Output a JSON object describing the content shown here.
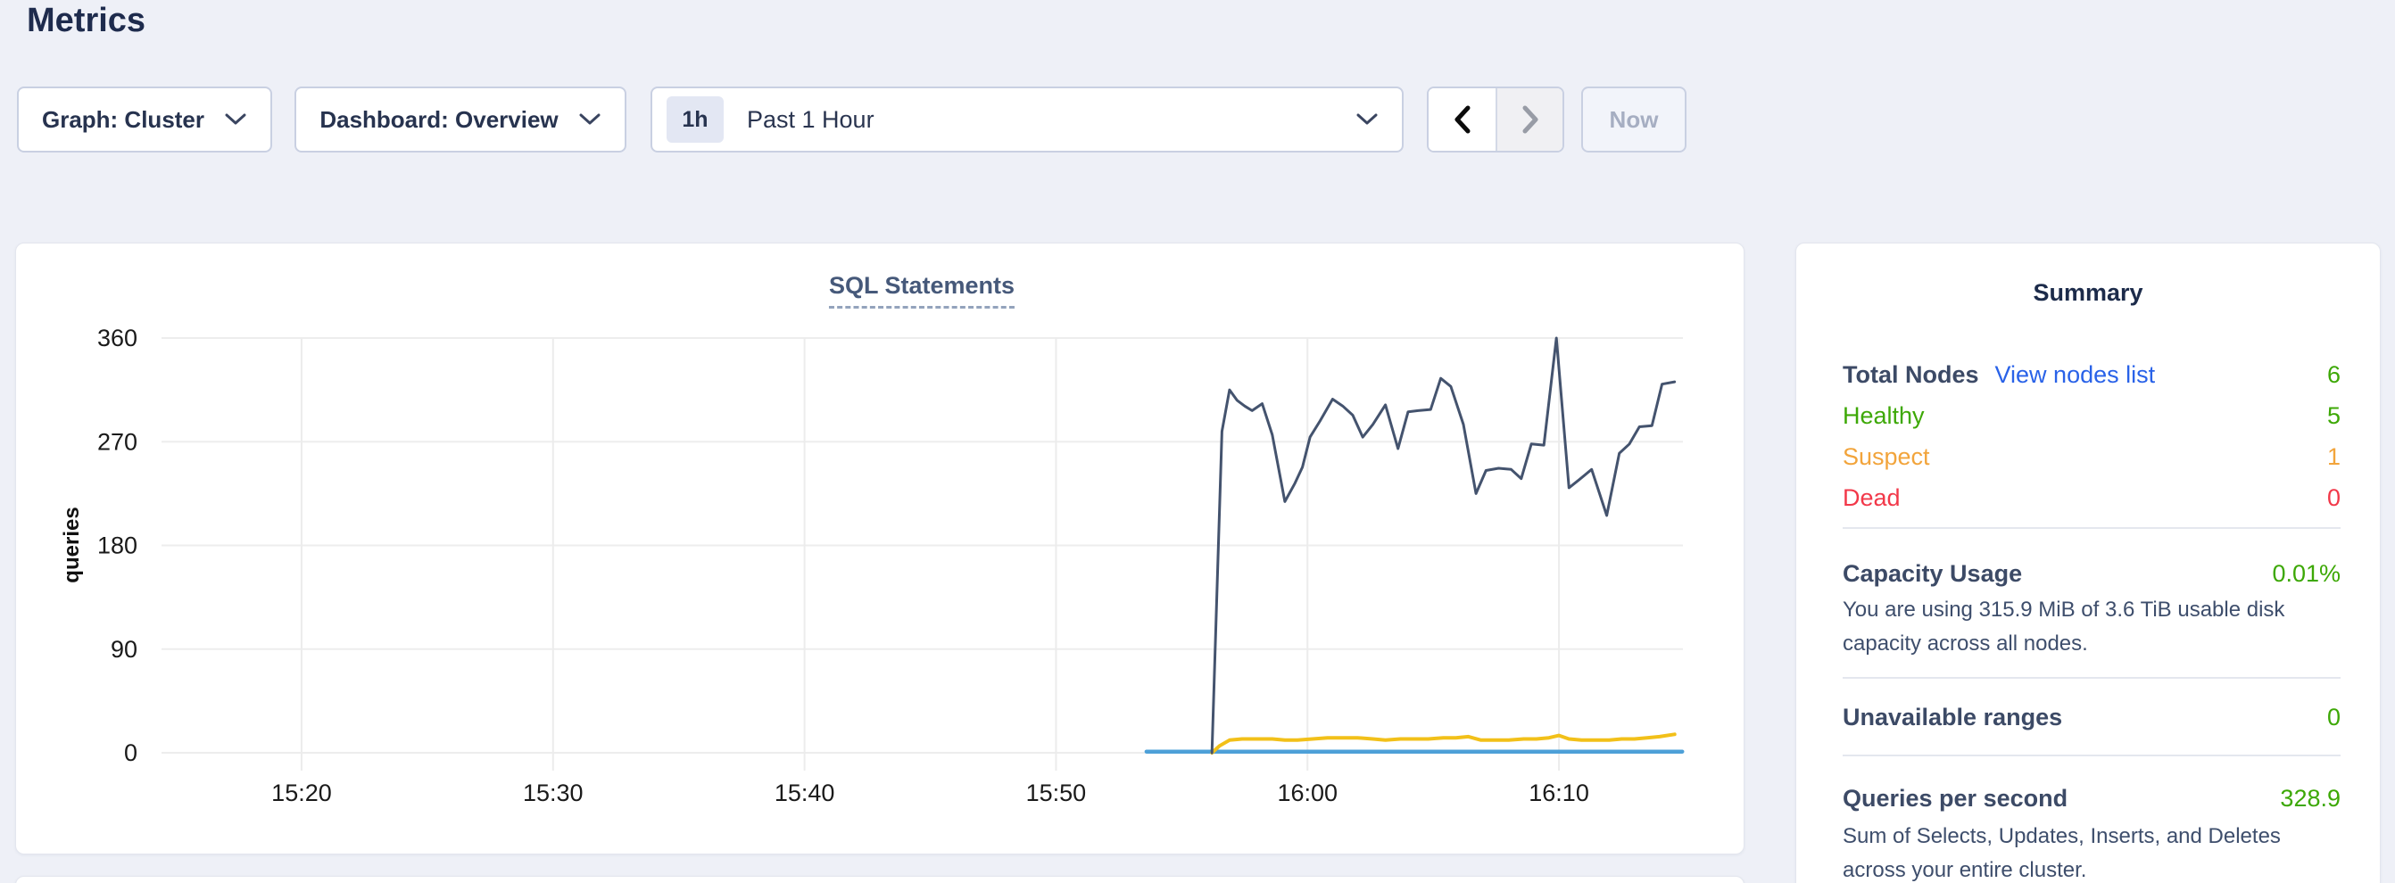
{
  "page": {
    "title": "Metrics"
  },
  "toolbar": {
    "graph_dropdown": "Graph: Cluster",
    "dashboard_dropdown": "Dashboard: Overview",
    "time_window": {
      "badge": "1h",
      "label": "Past 1 Hour"
    },
    "now_button": "Now"
  },
  "colors": {
    "link-blue": "#2962e8",
    "healthy-green": "#3da806",
    "suspect-orange": "#f2a43b",
    "dead-red": "#f23849",
    "series-dark": "#44536e",
    "series-yellow": "#f2c019",
    "series-blue": "#4da0d8"
  },
  "chart_data": {
    "type": "line",
    "title": "SQL Statements",
    "ylabel": "queries",
    "ylim": [
      0,
      360
    ],
    "y_ticks": [
      0,
      90,
      180,
      270,
      360
    ],
    "x_axis_note": "minutes after 15:00",
    "xlim": [
      14.43,
      74.93
    ],
    "x_ticks": [
      {
        "t": 20,
        "label": "15:20"
      },
      {
        "t": 30,
        "label": "15:30"
      },
      {
        "t": 40,
        "label": "15:40"
      },
      {
        "t": 50,
        "label": "15:50"
      },
      {
        "t": 60,
        "label": "16:00"
      },
      {
        "t": 70,
        "label": "16:10"
      }
    ],
    "grid": true,
    "legend": "none",
    "series": [
      {
        "name": "line-blue",
        "color_key": "series-blue",
        "width": 4.5,
        "points": [
          [
            53.6,
            1
          ],
          [
            74.9,
            1
          ]
        ]
      },
      {
        "name": "line-yellow",
        "color_key": "series-yellow",
        "width": 4,
        "points": [
          [
            56.2,
            0
          ],
          [
            56.5,
            6
          ],
          [
            56.9,
            11
          ],
          [
            57.4,
            12
          ],
          [
            58.0,
            12
          ],
          [
            58.6,
            12
          ],
          [
            59.1,
            11
          ],
          [
            59.6,
            11
          ],
          [
            60.2,
            12
          ],
          [
            60.8,
            13
          ],
          [
            61.4,
            13
          ],
          [
            62.0,
            13
          ],
          [
            62.6,
            12
          ],
          [
            63.1,
            11
          ],
          [
            63.7,
            12
          ],
          [
            64.2,
            12
          ],
          [
            64.8,
            12
          ],
          [
            65.4,
            13
          ],
          [
            65.9,
            13
          ],
          [
            66.4,
            14
          ],
          [
            66.9,
            11
          ],
          [
            67.4,
            11
          ],
          [
            68.0,
            11
          ],
          [
            68.6,
            12
          ],
          [
            69.1,
            12
          ],
          [
            69.6,
            13
          ],
          [
            70.0,
            15
          ],
          [
            70.4,
            12
          ],
          [
            70.9,
            11
          ],
          [
            71.4,
            11
          ],
          [
            72.0,
            11
          ],
          [
            72.5,
            12
          ],
          [
            73.0,
            12
          ],
          [
            73.5,
            13
          ],
          [
            74.0,
            14
          ],
          [
            74.6,
            16
          ]
        ]
      },
      {
        "name": "line-dark",
        "color_key": "series-dark",
        "width": 3,
        "points": [
          [
            56.2,
            0
          ],
          [
            56.6,
            279
          ],
          [
            56.9,
            315
          ],
          [
            57.2,
            306
          ],
          [
            57.5,
            301
          ],
          [
            57.8,
            297
          ],
          [
            58.2,
            303
          ],
          [
            58.6,
            276
          ],
          [
            59.1,
            218
          ],
          [
            59.5,
            234
          ],
          [
            59.8,
            248
          ],
          [
            60.1,
            274
          ],
          [
            60.5,
            288
          ],
          [
            61.0,
            307
          ],
          [
            61.4,
            301
          ],
          [
            61.8,
            293
          ],
          [
            62.2,
            274
          ],
          [
            62.6,
            285
          ],
          [
            63.1,
            302
          ],
          [
            63.6,
            264
          ],
          [
            64.0,
            296
          ],
          [
            64.4,
            297
          ],
          [
            64.9,
            298
          ],
          [
            65.3,
            325
          ],
          [
            65.7,
            318
          ],
          [
            66.2,
            285
          ],
          [
            66.7,
            225
          ],
          [
            67.1,
            245
          ],
          [
            67.6,
            247
          ],
          [
            68.1,
            246
          ],
          [
            68.5,
            238
          ],
          [
            68.9,
            268
          ],
          [
            69.4,
            267
          ],
          [
            69.9,
            360
          ],
          [
            70.4,
            230
          ],
          [
            70.8,
            237
          ],
          [
            71.3,
            246
          ],
          [
            71.9,
            206
          ],
          [
            72.4,
            260
          ],
          [
            72.8,
            268
          ],
          [
            73.2,
            283
          ],
          [
            73.7,
            284
          ],
          [
            74.1,
            320
          ],
          [
            74.6,
            322
          ]
        ]
      }
    ]
  },
  "summary": {
    "title": "Summary",
    "nodes": {
      "label": "Total Nodes",
      "link": "View nodes list",
      "value": "6",
      "rows": [
        {
          "label": "Healthy",
          "value": "5",
          "color": "healthy-green"
        },
        {
          "label": "Suspect",
          "value": "1",
          "color": "suspect-orange"
        },
        {
          "label": "Dead",
          "value": "0",
          "color": "dead-red"
        }
      ]
    },
    "sections": [
      {
        "label": "Capacity Usage",
        "value": "0.01%",
        "description": "You are using 315.9 MiB of 3.6 TiB usable disk capacity across all nodes."
      },
      {
        "label": "Unavailable ranges",
        "value": "0",
        "description": ""
      },
      {
        "label": "Queries per second",
        "value": "328.9",
        "description": "Sum of Selects, Updates, Inserts, and Deletes across your entire cluster."
      }
    ]
  }
}
